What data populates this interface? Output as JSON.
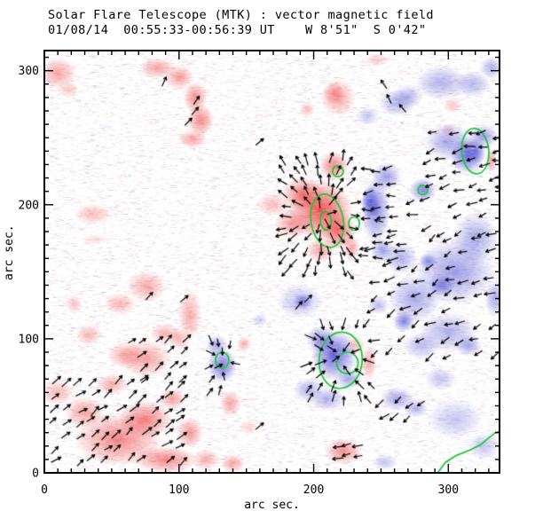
{
  "title": "Solar Flare Telescope (MTK) : vector magnetic field",
  "subtitle": "01/08/14  00:55:33-00:56:39 UT    W 8'51\"  S 0'42\"",
  "axes": {
    "xlabel": "arc sec.",
    "ylabel": "arc sec.",
    "x_ticks": [
      0,
      100,
      200,
      300
    ],
    "y_ticks": [
      0,
      100,
      200,
      300
    ],
    "x_tick_labels": [
      "0",
      "100",
      "200",
      "300"
    ],
    "y_tick_labels": [
      "0",
      "100",
      "200",
      "300"
    ],
    "minor_step": 10,
    "x_range": [
      0,
      338
    ],
    "y_range": [
      0,
      315
    ]
  },
  "chart_data": {
    "type": "heatmap",
    "description": "Vector magnetogram: red = positive line-of-sight field, blue = negative field, green = flare-kernel contours, black segments = transverse field vectors. Units: arc sec on both axes.",
    "colors": {
      "positive": "#ee4343",
      "negative": "#3a3ad0",
      "contour": "#17c837",
      "arrow": "#000000",
      "noise_red": "#e06060",
      "noise_blue": "#7878d2",
      "frame": "#000000",
      "background": "#ffffff"
    },
    "blob_format": "[x, y, rx, ry, intensity] in arc sec",
    "positive_blobs": [
      [
        10,
        298,
        14,
        12,
        0.5
      ],
      [
        18,
        286,
        8,
        6,
        0.3
      ],
      [
        84,
        302,
        14,
        8,
        0.5
      ],
      [
        100,
        295,
        11,
        9,
        0.55
      ],
      [
        112,
        280,
        9,
        12,
        0.6
      ],
      [
        116,
        263,
        10,
        12,
        0.65
      ],
      [
        110,
        249,
        11,
        7,
        0.5
      ],
      [
        195,
        271,
        6,
        6,
        0.35
      ],
      [
        218,
        280,
        13,
        14,
        0.5
      ],
      [
        215,
        283,
        8,
        8,
        0.4
      ],
      [
        247,
        308,
        9,
        5,
        0.3
      ],
      [
        303,
        274,
        7,
        6,
        0.3
      ],
      [
        300,
        256,
        5,
        4,
        0.3
      ],
      [
        36,
        193,
        14,
        8,
        0.35
      ],
      [
        37,
        174,
        10,
        4,
        0.2
      ],
      [
        76,
        139,
        15,
        12,
        0.45
      ],
      [
        56,
        126,
        12,
        8,
        0.4
      ],
      [
        22,
        126,
        6,
        7,
        0.35
      ],
      [
        108,
        118,
        9,
        20,
        0.45
      ],
      [
        100,
        100,
        8,
        8,
        0.4
      ],
      [
        90,
        104,
        12,
        8,
        0.4
      ],
      [
        33,
        103,
        10,
        8,
        0.4
      ],
      [
        148,
        96,
        5,
        6,
        0.45
      ],
      [
        75,
        85,
        20,
        14,
        0.5
      ],
      [
        60,
        88,
        14,
        10,
        0.45
      ],
      [
        55,
        25,
        33,
        20,
        0.65
      ],
      [
        75,
        40,
        20,
        14,
        0.7
      ],
      [
        30,
        45,
        15,
        12,
        0.5
      ],
      [
        90,
        10,
        24,
        10,
        0.65
      ],
      [
        10,
        60,
        12,
        10,
        0.4
      ],
      [
        50,
        66,
        12,
        8,
        0.45
      ],
      [
        108,
        30,
        10,
        12,
        0.55
      ],
      [
        120,
        10,
        10,
        8,
        0.45
      ],
      [
        95,
        55,
        10,
        8,
        0.5
      ],
      [
        138,
        52,
        8,
        10,
        0.5
      ],
      [
        152,
        34,
        8,
        5,
        0.25
      ],
      [
        140,
        7,
        9,
        7,
        0.5
      ],
      [
        222,
        16,
        14,
        10,
        0.6
      ],
      [
        205,
        196,
        24,
        22,
        0.95
      ],
      [
        192,
        208,
        16,
        13,
        0.7
      ],
      [
        218,
        181,
        13,
        15,
        0.8
      ],
      [
        184,
        186,
        13,
        11,
        0.55
      ],
      [
        215,
        229,
        11,
        11,
        0.65
      ],
      [
        170,
        200,
        13,
        9,
        0.35
      ],
      [
        205,
        166,
        11,
        9,
        0.5
      ],
      [
        228,
        168,
        6,
        9,
        0.5
      ],
      [
        231,
        95,
        7,
        7,
        0.35
      ],
      [
        241,
        82,
        6,
        13,
        0.45
      ],
      [
        332,
        233,
        4,
        9,
        0.5
      ]
    ],
    "negative_blobs": [
      [
        305,
        150,
        30,
        25,
        0.5
      ],
      [
        275,
        130,
        20,
        18,
        0.45
      ],
      [
        300,
        105,
        22,
        15,
        0.4
      ],
      [
        320,
        175,
        17,
        19,
        0.45
      ],
      [
        280,
        95,
        14,
        10,
        0.35
      ],
      [
        265,
        160,
        12,
        12,
        0.4
      ],
      [
        267,
        113,
        8,
        8,
        0.65
      ],
      [
        295,
        140,
        10,
        8,
        0.55
      ],
      [
        315,
        95,
        10,
        8,
        0.45
      ],
      [
        285,
        158,
        7,
        6,
        0.55
      ],
      [
        335,
        130,
        8,
        14,
        0.45
      ],
      [
        294,
        70,
        12,
        9,
        0.3
      ],
      [
        248,
        125,
        8,
        7,
        0.35
      ],
      [
        246,
        196,
        11,
        25,
        0.6
      ],
      [
        242,
        202,
        7,
        12,
        0.7
      ],
      [
        254,
        221,
        11,
        11,
        0.5
      ],
      [
        251,
        166,
        9,
        9,
        0.5
      ],
      [
        314,
        237,
        13,
        14,
        0.75
      ],
      [
        320,
        240,
        8,
        10,
        0.55
      ],
      [
        300,
        247,
        18,
        14,
        0.45
      ],
      [
        326,
        251,
        11,
        9,
        0.5
      ],
      [
        281,
        211,
        10,
        9,
        0.6
      ],
      [
        295,
        291,
        20,
        13,
        0.4
      ],
      [
        270,
        281,
        11,
        9,
        0.35
      ],
      [
        318,
        290,
        13,
        10,
        0.4
      ],
      [
        332,
        302,
        9,
        8,
        0.4
      ],
      [
        262,
        276,
        14,
        10,
        0.4
      ],
      [
        240,
        266,
        9,
        7,
        0.3
      ],
      [
        215,
        88,
        17,
        19,
        0.8
      ],
      [
        205,
        100,
        11,
        10,
        0.5
      ],
      [
        226,
        70,
        10,
        8,
        0.45
      ],
      [
        196,
        62,
        11,
        9,
        0.4
      ],
      [
        210,
        55,
        14,
        9,
        0.4
      ],
      [
        132,
        80,
        11,
        13,
        0.7
      ],
      [
        128,
        95,
        8,
        8,
        0.45
      ],
      [
        190,
        128,
        17,
        13,
        0.35
      ],
      [
        192,
        128,
        7,
        6,
        0.5
      ],
      [
        160,
        114,
        6,
        5,
        0.25
      ],
      [
        262,
        55,
        13,
        9,
        0.45
      ],
      [
        276,
        48,
        9,
        7,
        0.4
      ],
      [
        305,
        40,
        21,
        15,
        0.3
      ],
      [
        326,
        20,
        12,
        10,
        0.3
      ],
      [
        253,
        8,
        10,
        6,
        0.3
      ]
    ],
    "contour_format": "[cx, cy, rx, ry, rotation_deg]",
    "contours": [
      [
        210,
        188,
        12,
        20,
        10
      ],
      [
        209,
        188,
        4,
        7,
        5
      ],
      [
        218,
        225,
        4,
        4,
        0
      ],
      [
        230,
        186,
        4,
        5,
        0
      ],
      [
        320,
        240,
        10,
        17,
        5
      ],
      [
        281,
        211,
        3.5,
        3.5,
        0
      ],
      [
        220,
        84,
        16,
        21,
        -5
      ],
      [
        225,
        82,
        8,
        8,
        0
      ],
      [
        132,
        84,
        5,
        6,
        0
      ]
    ],
    "contour_path": [
      [
        292,
        0
      ],
      [
        298,
        8
      ],
      [
        306,
        13
      ],
      [
        316,
        17
      ],
      [
        324,
        21
      ],
      [
        330,
        26
      ],
      [
        335,
        30
      ],
      [
        338,
        31
      ]
    ],
    "arrow_clusters": [
      {
        "x0": 8,
        "y0": 10,
        "x1": 104,
        "y1": 68,
        "step": 9.5,
        "mode": "uniform",
        "angle": 38,
        "jitter": 14,
        "keep": 0.75,
        "len": 7.5
      },
      {
        "x0": 64,
        "y0": 70,
        "x1": 104,
        "y1": 104,
        "step": 10,
        "mode": "uniform",
        "angle": 40,
        "jitter": 12,
        "keep": 0.7,
        "len": 7
      },
      {
        "x0": 178,
        "y0": 150,
        "x1": 234,
        "y1": 240,
        "step": 8.5,
        "mode": "out",
        "cx": 207,
        "cy": 192,
        "jitter": 12,
        "keep": 0.9,
        "len": 7.5
      },
      {
        "x0": 238,
        "y0": 160,
        "x1": 272,
        "y1": 232,
        "step": 9.5,
        "mode": "uniform",
        "angle": 185,
        "jitter": 20,
        "keep": 0.8,
        "len": 7.5
      },
      {
        "x0": 244,
        "y0": 88,
        "x1": 334,
        "y1": 185,
        "step": 11,
        "mode": "uniform",
        "angle": 208,
        "jitter": 26,
        "keep": 0.6,
        "len": 7
      },
      {
        "x0": 286,
        "y0": 212,
        "x1": 336,
        "y1": 258,
        "step": 10,
        "mode": "uniform",
        "angle": 195,
        "jitter": 22,
        "keep": 0.75,
        "len": 7
      },
      {
        "x0": 250,
        "y0": 180,
        "x1": 330,
        "y1": 208,
        "step": 11,
        "mode": "uniform",
        "angle": 200,
        "jitter": 25,
        "keep": 0.45,
        "len": 7
      },
      {
        "x0": 196,
        "y0": 56,
        "x1": 242,
        "y1": 114,
        "step": 9,
        "mode": "in",
        "cx": 219,
        "cy": 87,
        "jitter": 12,
        "keep": 0.85,
        "len": 7.5
      },
      {
        "x0": 122,
        "y0": 62,
        "x1": 146,
        "y1": 100,
        "step": 9,
        "mode": "in",
        "cx": 133,
        "cy": 82,
        "jitter": 15,
        "keep": 0.8,
        "len": 6.5
      },
      {
        "x0": 250,
        "y0": 42,
        "x1": 285,
        "y1": 60,
        "step": 10,
        "mode": "uniform",
        "angle": 222,
        "jitter": 15,
        "keep": 0.8,
        "len": 7
      },
      {
        "x0": 216,
        "y0": 12,
        "x1": 236,
        "y1": 22,
        "step": 9,
        "mode": "uniform",
        "angle": 195,
        "jitter": 12,
        "keep": 1,
        "len": 7
      }
    ],
    "single_arrow_format": "[x, y, angle_deg]",
    "single_arrows": [
      [
        89,
        292,
        65
      ],
      [
        113,
        278,
        55
      ],
      [
        112,
        270,
        48
      ],
      [
        107,
        262,
        45
      ],
      [
        252,
        290,
        125
      ],
      [
        256,
        279,
        115
      ],
      [
        266,
        272,
        130
      ],
      [
        78,
        132,
        48
      ],
      [
        104,
        130,
        40
      ],
      [
        189,
        125,
        50
      ],
      [
        196,
        130,
        45
      ],
      [
        160,
        247,
        40
      ],
      [
        160,
        35,
        40
      ]
    ]
  }
}
